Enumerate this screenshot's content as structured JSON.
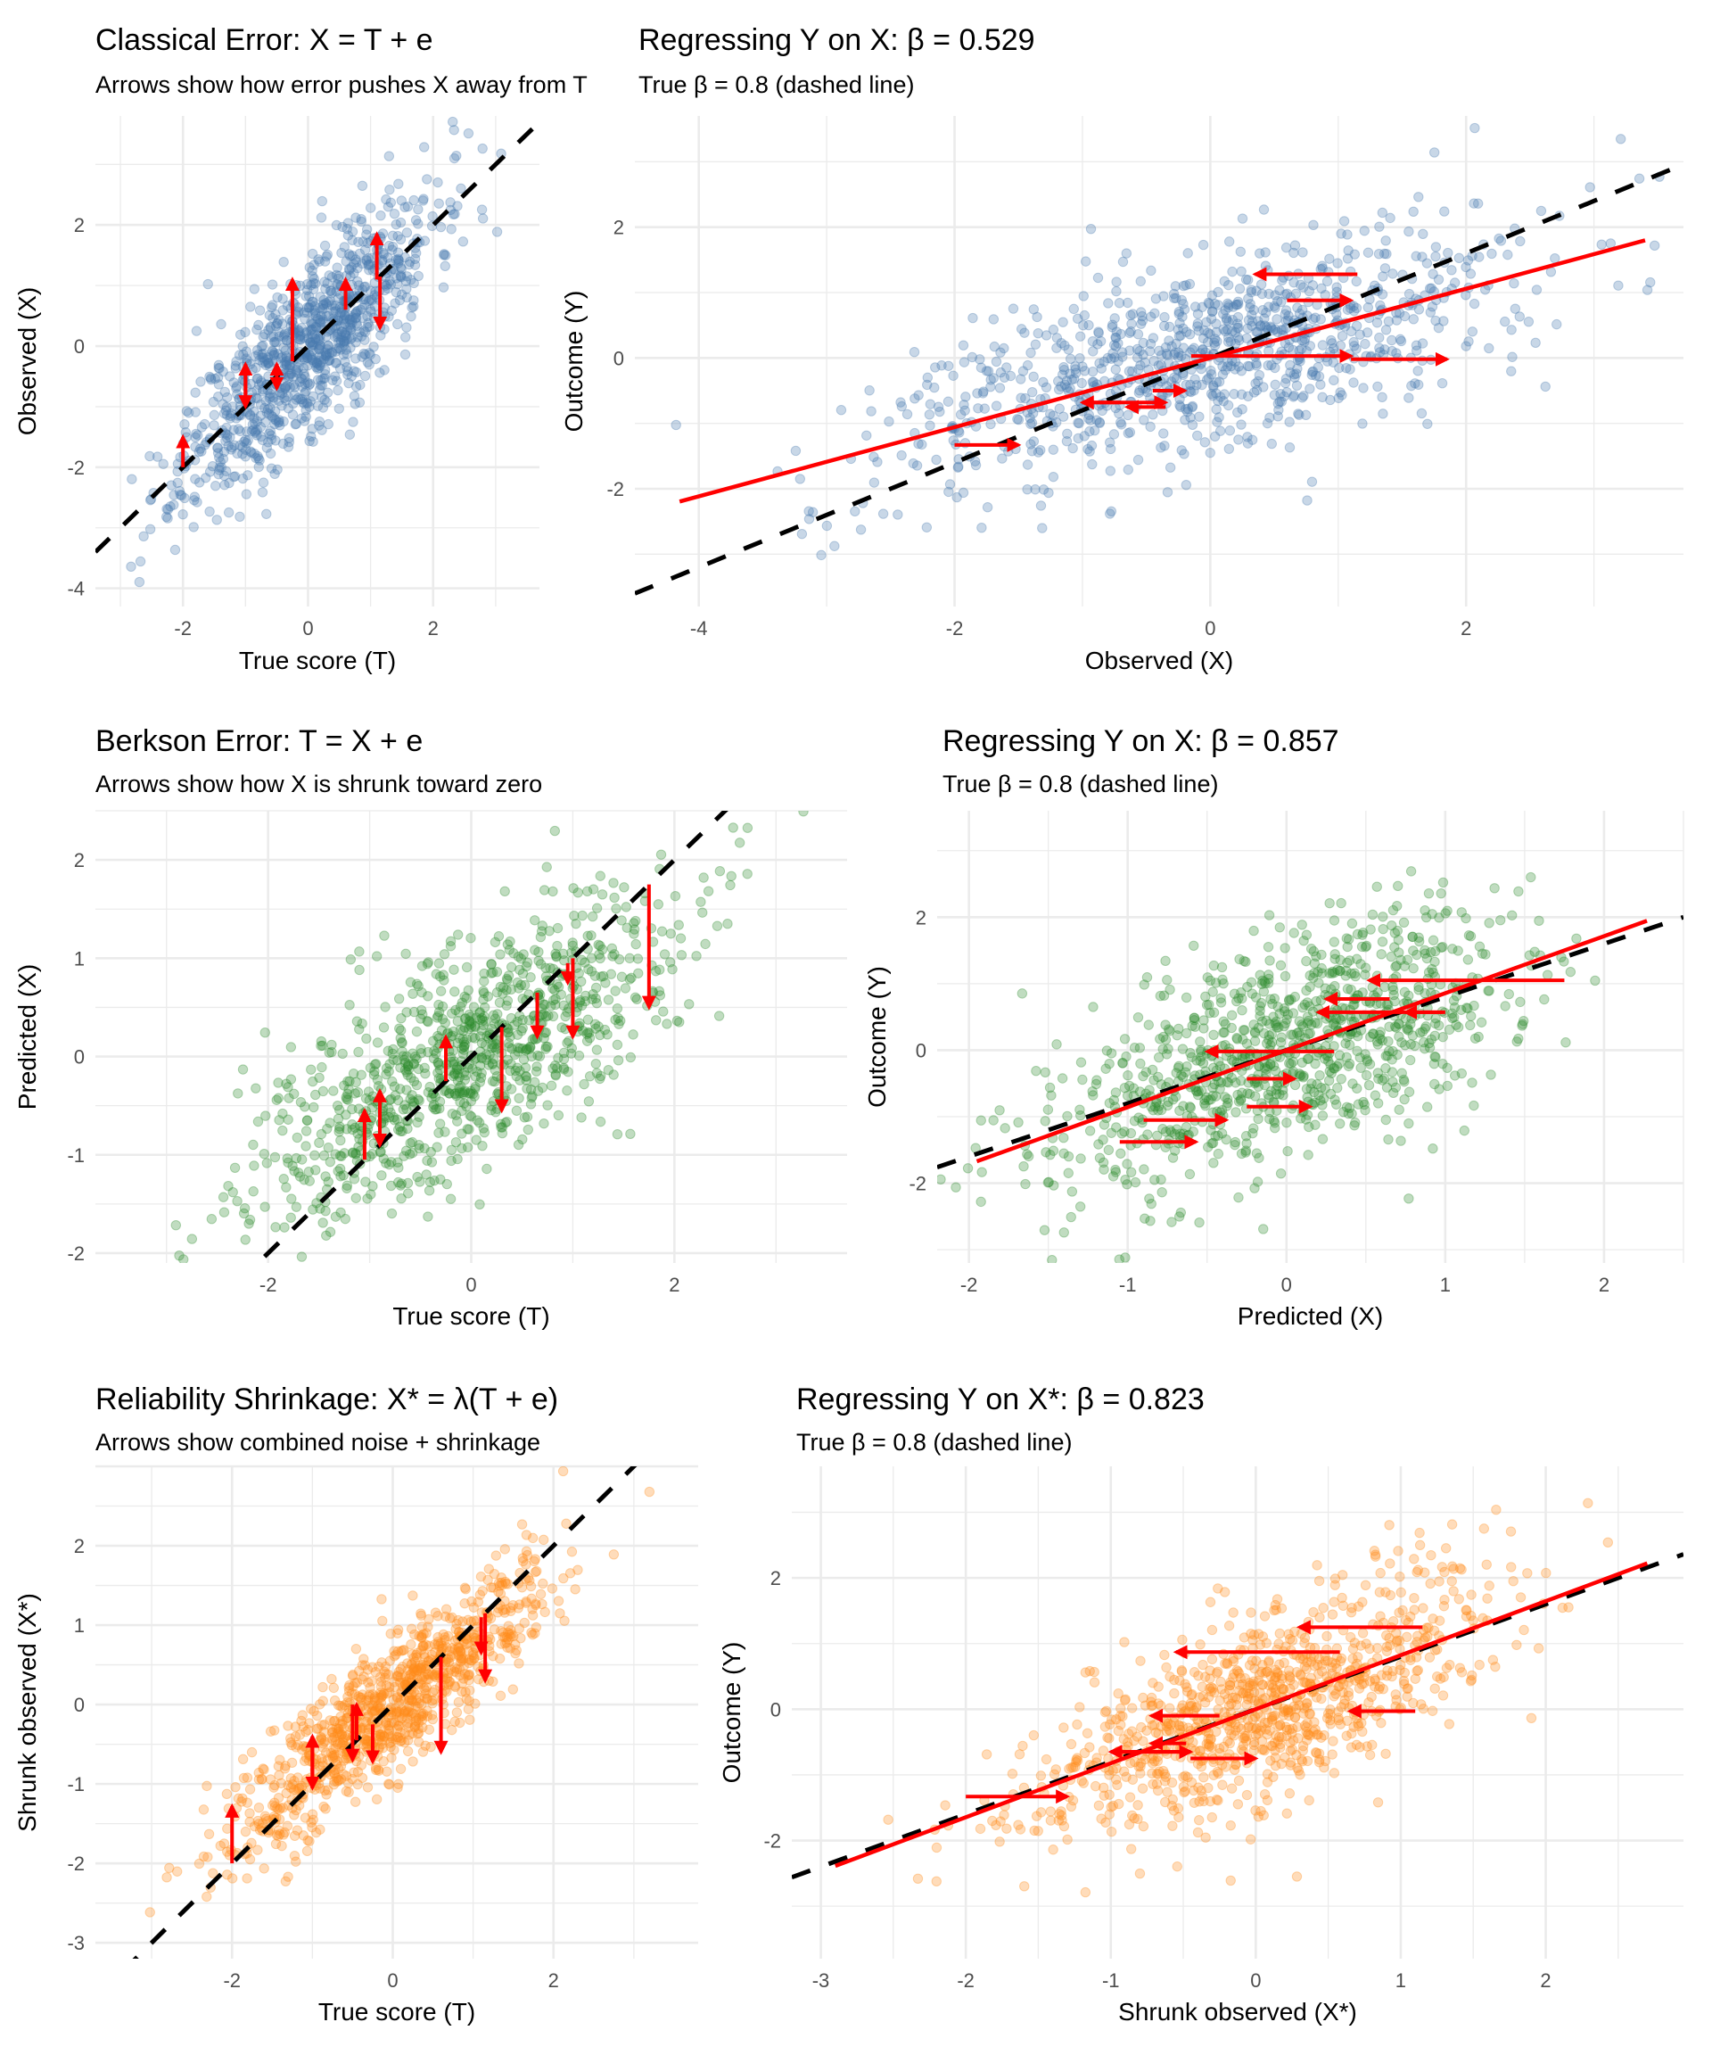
{
  "colors": {
    "classical": "#4a7ab0",
    "berkson": "#2e8b2e",
    "shrink": "#ff8c1a",
    "arrow": "#ff0000",
    "fit_line": "#ff0000",
    "true_line": "#000000",
    "grid": "#ebebeb"
  },
  "chart_data": [
    {
      "id": "classical-error",
      "type": "scatter",
      "title": "Classical Error: X = T + e",
      "subtitle": "Arrows show how error pushes X away from T",
      "xlabel": "True score (T)",
      "ylabel": "Observed (X)",
      "xlim": [
        -3.4,
        3.7
      ],
      "ylim": [
        -4.3,
        3.8
      ],
      "xticks": [
        -2,
        0,
        2
      ],
      "yticks": [
        -4,
        -2,
        0,
        2
      ],
      "grid": true,
      "color_key": "classical",
      "points": {
        "n": 1000,
        "x_sd": 1.0,
        "y_slope": 1.0,
        "noise_sd": 0.7,
        "seed": 11
      },
      "reference_line": {
        "slope": 1.0,
        "intercept": 0,
        "style": "dashed"
      },
      "arrows": [
        {
          "x": -2.0,
          "from": -2.0,
          "to": -1.5
        },
        {
          "x": -1.0,
          "from": -1.0,
          "to": -0.3
        },
        {
          "x": -1.0,
          "from": -0.3,
          "to": -1.0
        },
        {
          "x": -0.5,
          "from": -0.3,
          "to": -0.7
        },
        {
          "x": -0.5,
          "from": -0.7,
          "to": -0.3
        },
        {
          "x": -0.25,
          "from": -0.25,
          "to": 1.1
        },
        {
          "x": 0.6,
          "from": 0.6,
          "to": 1.1
        },
        {
          "x": 1.1,
          "from": 1.1,
          "to": 1.85
        },
        {
          "x": 1.15,
          "from": 1.15,
          "to": 0.3
        }
      ]
    },
    {
      "id": "classical-regression",
      "type": "scatter",
      "title": "Regressing Y on X: β = 0.529",
      "subtitle": "True β = 0.8 (dashed line)",
      "xlabel": "Observed (X)",
      "ylabel": "Outcome (Y)",
      "xlim": [
        -4.5,
        3.7
      ],
      "ylim": [
        -3.8,
        3.7
      ],
      "xticks": [
        -4,
        -2,
        0,
        2
      ],
      "yticks": [
        -2,
        0,
        2
      ],
      "grid": true,
      "color_key": "classical",
      "points": {
        "n": 1000,
        "x_sd": 1.22,
        "y_slope": 0.529,
        "noise_sd": 0.75,
        "seed": 12
      },
      "reference_line": {
        "slope": 0.8,
        "intercept": 0,
        "style": "dashed"
      },
      "fit_line": {
        "slope": 0.529,
        "intercept": 0,
        "x_range": [
          -4.15,
          3.4
        ]
      },
      "arrows_h": [
        {
          "y": 1.28,
          "from": 1.15,
          "to": 0.35
        },
        {
          "y": 0.88,
          "from": 0.6,
          "to": 1.1
        },
        {
          "y": 0.03,
          "from": -0.15,
          "to": 1.1
        },
        {
          "y": -0.02,
          "from": 1.1,
          "to": 1.85
        },
        {
          "y": -0.5,
          "from": -0.45,
          "to": -0.2
        },
        {
          "y": -0.68,
          "from": -0.7,
          "to": -1.0
        },
        {
          "y": -0.68,
          "from": -1.0,
          "to": -0.35
        },
        {
          "y": -0.75,
          "from": -0.35,
          "to": -0.65
        },
        {
          "y": -1.33,
          "from": -2.0,
          "to": -1.5
        }
      ]
    },
    {
      "id": "berkson-error",
      "type": "scatter",
      "title": "Berkson Error: T = X + e",
      "subtitle": "Arrows show how X is shrunk toward zero",
      "xlabel": "True score (T)",
      "ylabel": "Predicted (X)",
      "xlim": [
        -3.7,
        3.7
      ],
      "ylim": [
        -2.1,
        2.5
      ],
      "xticks": [
        -2,
        0,
        2
      ],
      "yticks": [
        -2,
        -1,
        0,
        1,
        2
      ],
      "grid": true,
      "color_key": "berkson",
      "points": {
        "n": 1000,
        "x_sd": 1.1,
        "y_slope": 0.58,
        "noise_sd": 0.55,
        "seed": 21
      },
      "reference_line": {
        "slope": 1.0,
        "intercept": 0,
        "style": "dashed"
      },
      "arrows": [
        {
          "x": -1.05,
          "from": -1.05,
          "to": -0.55
        },
        {
          "x": -0.9,
          "from": -0.9,
          "to": -0.35
        },
        {
          "x": -0.9,
          "from": -0.35,
          "to": -0.9
        },
        {
          "x": -0.25,
          "from": -0.25,
          "to": 0.2
        },
        {
          "x": 0.3,
          "from": 0.3,
          "to": -0.55
        },
        {
          "x": 0.65,
          "from": 0.65,
          "to": 0.2
        },
        {
          "x": 0.95,
          "from": 0.95,
          "to": 0.75
        },
        {
          "x": 1.0,
          "from": 1.0,
          "to": 0.2
        },
        {
          "x": 1.75,
          "from": 1.75,
          "to": 0.5
        }
      ]
    },
    {
      "id": "berkson-regression",
      "type": "scatter",
      "title": "Regressing Y on X: β = 0.857",
      "subtitle": "True β = 0.8 (dashed line)",
      "xlabel": "Predicted (X)",
      "ylabel": "Outcome (Y)",
      "xlim": [
        -2.2,
        2.5
      ],
      "ylim": [
        -3.2,
        3.6
      ],
      "xticks": [
        -2,
        -1,
        0,
        1,
        2
      ],
      "yticks": [
        -2,
        0,
        2
      ],
      "grid": true,
      "color_key": "berkson",
      "points": {
        "n": 1000,
        "x_sd": 0.7,
        "y_slope": 0.857,
        "noise_sd": 0.8,
        "seed": 22
      },
      "reference_line": {
        "slope": 0.8,
        "intercept": 0,
        "style": "dashed"
      },
      "fit_line": {
        "slope": 0.857,
        "intercept": 0.0,
        "x_range": [
          -1.95,
          2.27
        ]
      },
      "arrows_h": [
        {
          "y": 1.05,
          "from": 1.75,
          "to": 0.52
        },
        {
          "y": 0.77,
          "from": 0.65,
          "to": 0.25
        },
        {
          "y": 0.57,
          "from": 0.98,
          "to": 0.2
        },
        {
          "y": 0.57,
          "from": 1.0,
          "to": 0.75
        },
        {
          "y": -0.02,
          "from": 0.3,
          "to": -0.5
        },
        {
          "y": -0.43,
          "from": -0.25,
          "to": 0.05
        },
        {
          "y": -0.85,
          "from": -0.25,
          "to": 0.15
        },
        {
          "y": -1.05,
          "from": -0.9,
          "to": -0.38
        },
        {
          "y": -1.38,
          "from": -1.05,
          "to": -0.57
        }
      ]
    },
    {
      "id": "reliability-shrinkage",
      "type": "scatter",
      "title": "Reliability Shrinkage: X* = λ(T + e)",
      "subtitle": "Arrows show combined noise + shrinkage",
      "xlabel": "True score (T)",
      "ylabel": "Shrunk observed (X*)",
      "xlim": [
        -3.7,
        3.8
      ],
      "ylim": [
        -3.2,
        3.0
      ],
      "xticks": [
        -2,
        0,
        2
      ],
      "yticks": [
        -3,
        -2,
        -1,
        0,
        1,
        2
      ],
      "grid": true,
      "color_key": "shrink",
      "points": {
        "n": 1000,
        "x_sd": 1.0,
        "y_slope": 0.8,
        "noise_sd": 0.4,
        "seed": 31
      },
      "reference_line": {
        "slope": 1.0,
        "intercept": 0,
        "style": "dashed"
      },
      "arrows": [
        {
          "x": -2.0,
          "from": -2.0,
          "to": -1.28
        },
        {
          "x": -1.0,
          "from": -1.05,
          "to": -0.4
        },
        {
          "x": -1.0,
          "from": -0.4,
          "to": -1.05
        },
        {
          "x": -0.45,
          "from": -0.45,
          "to": 0.0
        },
        {
          "x": -0.5,
          "from": 0.0,
          "to": -0.7
        },
        {
          "x": -0.25,
          "from": -0.25,
          "to": -0.72
        },
        {
          "x": 0.6,
          "from": 0.6,
          "to": -0.6
        },
        {
          "x": 1.1,
          "from": 1.1,
          "to": 0.65
        },
        {
          "x": 1.15,
          "from": 1.15,
          "to": 0.3
        }
      ]
    },
    {
      "id": "shrinkage-regression",
      "type": "scatter",
      "title": "Regressing Y on X*: β = 0.823",
      "subtitle": "True β = 0.8 (dashed line)",
      "xlabel": "Shrunk observed (X*)",
      "ylabel": "Outcome (Y)",
      "xlim": [
        -3.2,
        2.95
      ],
      "ylim": [
        -3.8,
        3.7
      ],
      "xticks": [
        -3,
        -2,
        -1,
        0,
        1,
        2
      ],
      "yticks": [
        -2,
        0,
        2
      ],
      "grid": true,
      "color_key": "shrink",
      "points": {
        "n": 1000,
        "x_sd": 0.8,
        "y_slope": 0.823,
        "noise_sd": 0.7,
        "seed": 32
      },
      "reference_line": {
        "slope": 0.8,
        "intercept": 0,
        "style": "dashed"
      },
      "fit_line": {
        "slope": 0.823,
        "intercept": 0.0,
        "x_range": [
          -2.9,
          2.7
        ]
      },
      "arrows_h": [
        {
          "y": 1.25,
          "from": 1.15,
          "to": 0.3
        },
        {
          "y": 0.87,
          "from": 0.58,
          "to": -0.55
        },
        {
          "y": -0.1,
          "from": -0.25,
          "to": -0.72
        },
        {
          "y": -0.03,
          "from": 1.1,
          "to": 0.65
        },
        {
          "y": -0.52,
          "from": -0.48,
          "to": -0.72
        },
        {
          "y": -0.65,
          "from": -0.45,
          "to": -1.0
        },
        {
          "y": -0.65,
          "from": -1.0,
          "to": -0.45
        },
        {
          "y": -0.75,
          "from": -0.45,
          "to": 0.0
        },
        {
          "y": -1.33,
          "from": -2.0,
          "to": -1.3
        }
      ]
    }
  ]
}
